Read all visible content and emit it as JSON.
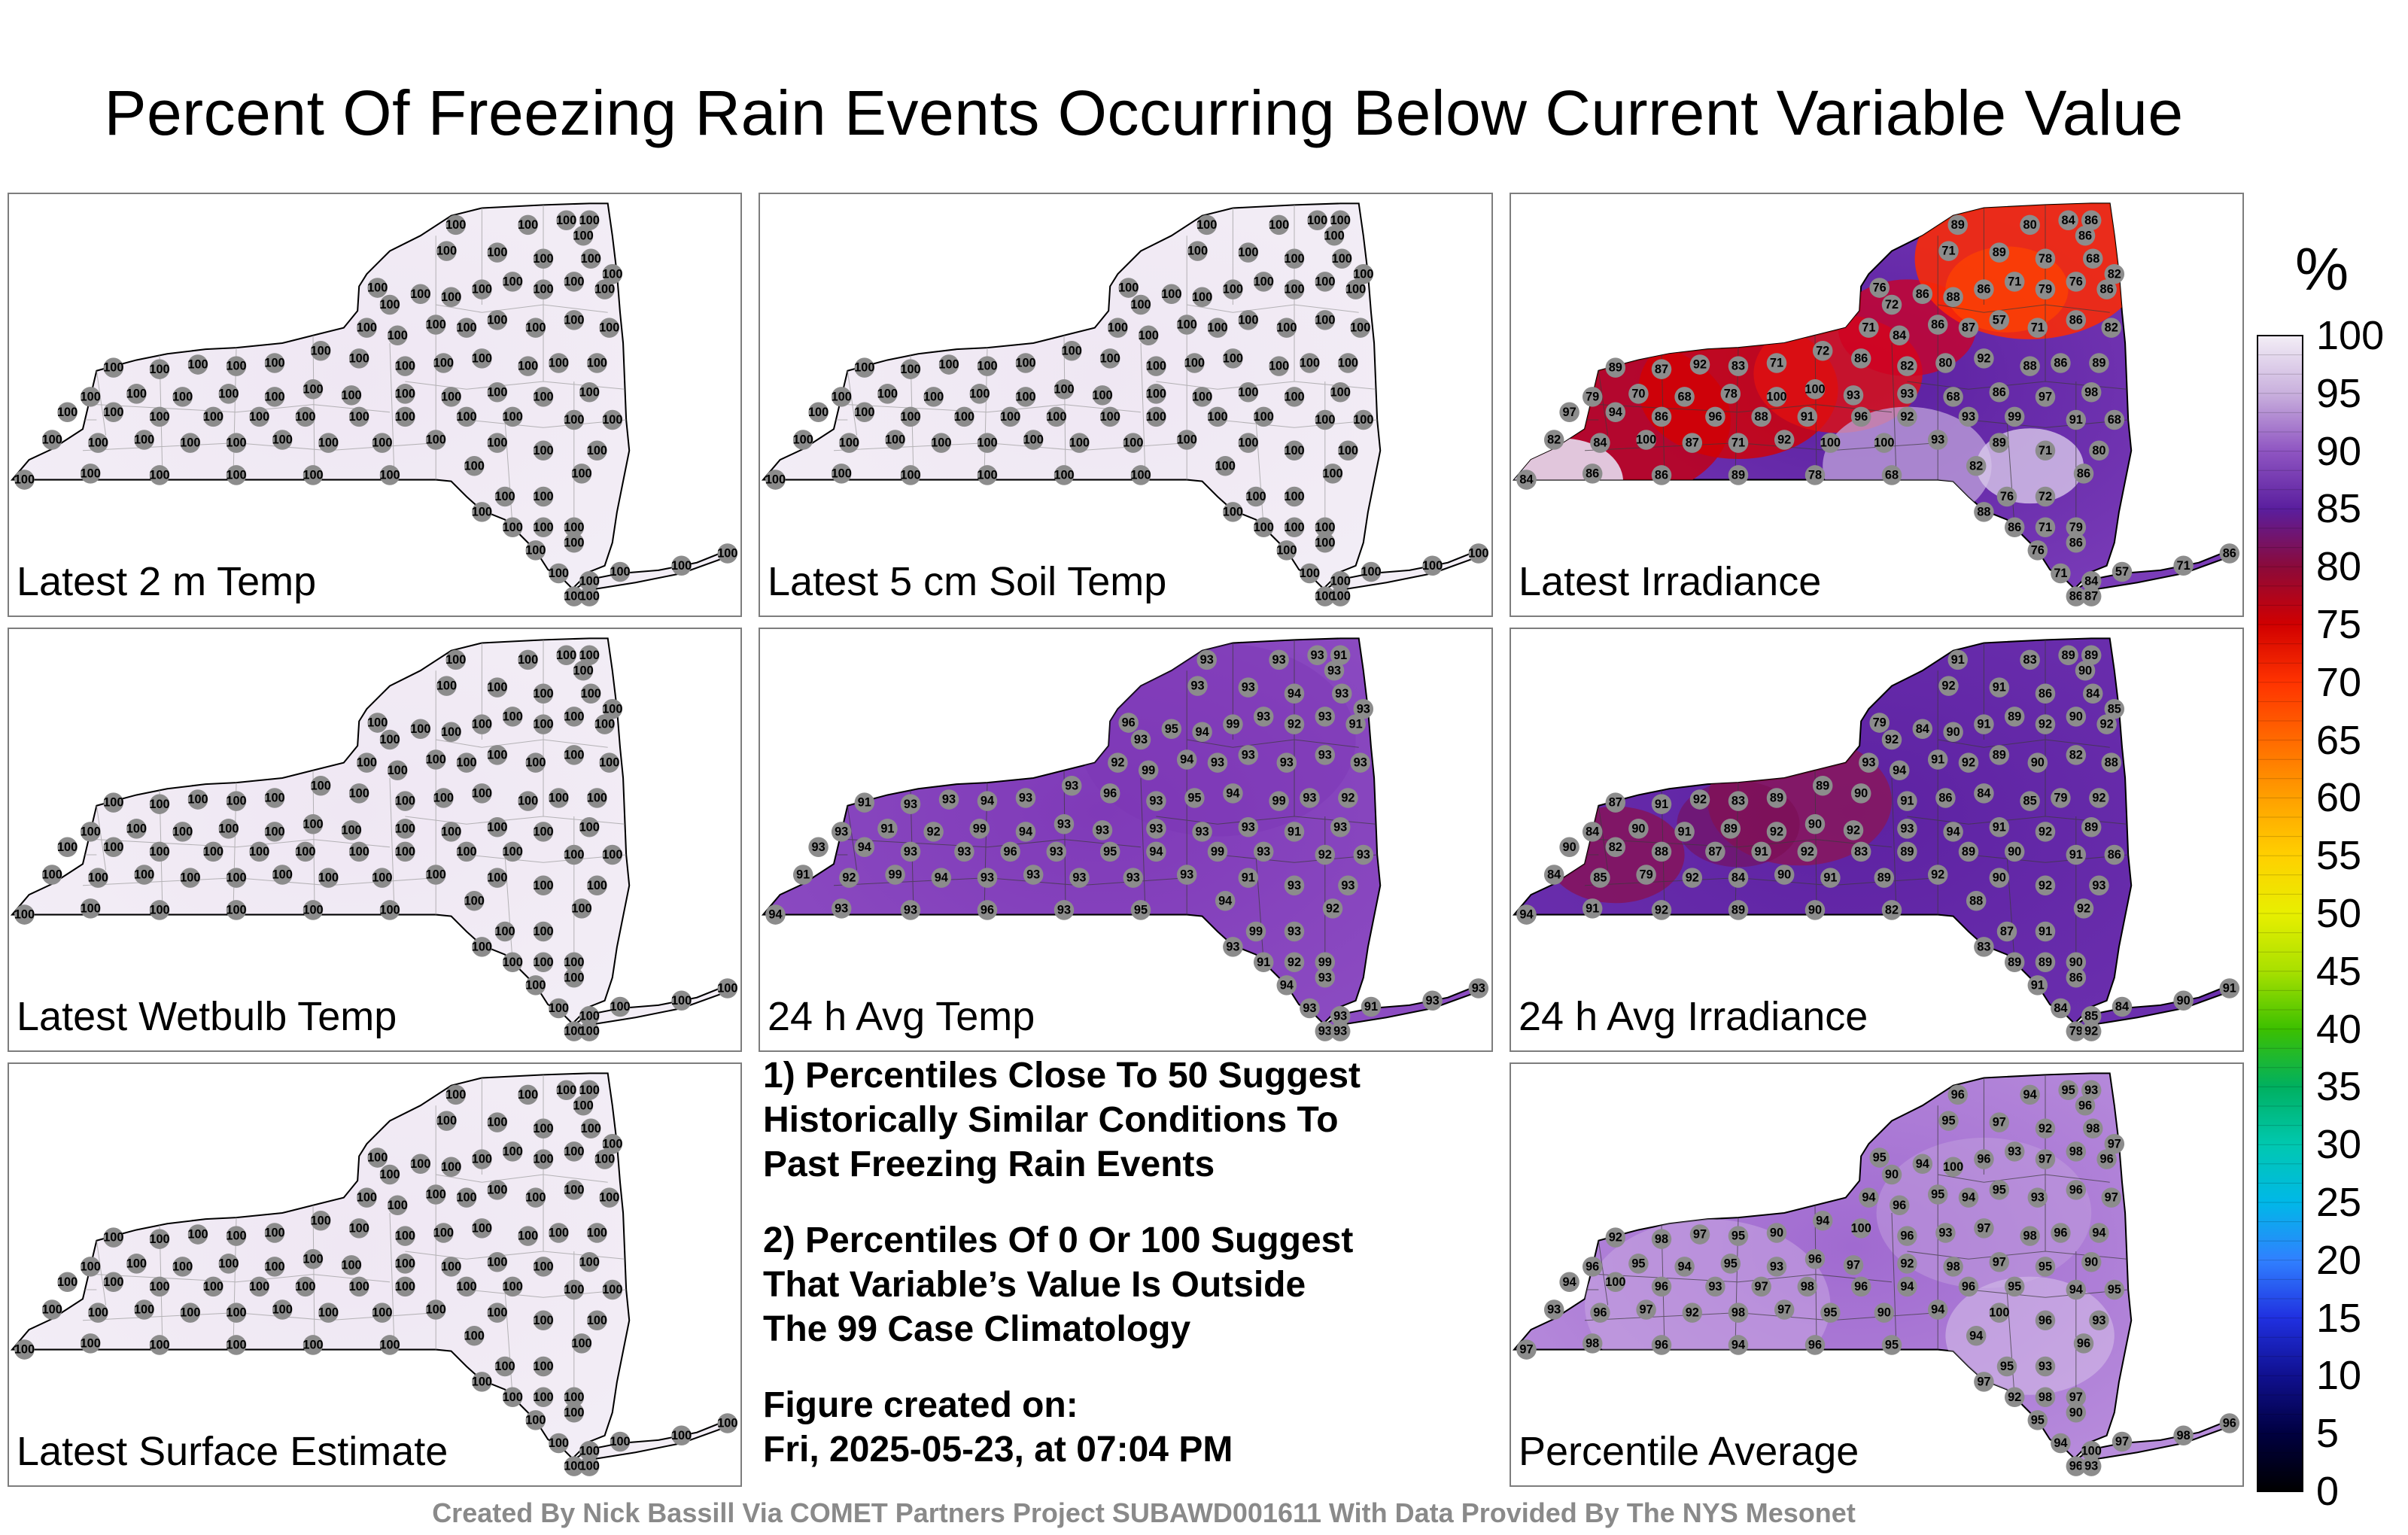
{
  "title": "Percent Of Freezing Rain Events Occurring Below Current Variable Value",
  "panels": [
    {
      "id": "p1",
      "label": "Latest 2 m Temp",
      "fill": "#efe7f3",
      "fill2": "#f3eef6",
      "mode": "uniform",
      "values": [
        100
      ]
    },
    {
      "id": "p2",
      "label": "Latest 5 cm Soil Temp",
      "fill": "#efe7f3",
      "fill2": "#f3eef6",
      "mode": "uniform",
      "values": [
        100
      ]
    },
    {
      "id": "p3",
      "label": "Latest Irradiance",
      "fill": "#5a1fa0",
      "fill2": "#7a3cb8",
      "mode": "irradiance",
      "values": [
        89,
        71,
        80,
        84,
        86,
        86,
        89,
        78,
        68,
        82,
        76,
        72,
        86,
        88,
        86,
        71,
        79,
        76,
        86,
        71,
        84,
        86,
        87,
        57,
        71,
        86,
        82,
        89,
        87,
        92,
        83,
        71,
        72,
        86,
        82,
        80,
        92,
        88,
        86,
        89,
        79,
        70,
        68,
        78,
        100,
        100,
        93,
        93,
        68,
        86,
        97,
        98,
        97,
        94,
        86,
        96,
        88,
        91,
        96,
        92,
        93,
        99,
        91,
        68,
        82,
        84,
        100,
        87,
        71,
        92,
        100,
        100,
        93
      ]
    },
    {
      "id": "p4",
      "label": "Latest Wetbulb Temp",
      "fill": "#efe7f3",
      "fill2": "#f3eef6",
      "mode": "uniform",
      "values": [
        100
      ]
    },
    {
      "id": "p5",
      "label": "24 h Avg Temp",
      "fill": "#7f3ab8",
      "fill2": "#8c4cc2",
      "mode": "temp",
      "values": [
        93,
        93,
        93,
        93,
        91,
        93,
        93,
        94,
        93,
        93,
        96,
        93,
        95,
        94,
        99,
        93,
        92,
        93,
        91,
        92,
        99,
        94,
        93
      ]
    },
    {
      "id": "p6",
      "label": "24 h Avg Irradiance",
      "fill": "#5d22a2",
      "fill2": "#6b2fae",
      "mode": "avgirr",
      "values": [
        91,
        92,
        83,
        89,
        89,
        90,
        91,
        86,
        84,
        85,
        79,
        92,
        84,
        90,
        91,
        89,
        92,
        90,
        92,
        93,
        94,
        91,
        92,
        89,
        90,
        82,
        88,
        87
      ]
    },
    {
      "id": "p7",
      "label": "Latest Surface Estimate",
      "fill": "#efe7f3",
      "fill2": "#f3eef6",
      "mode": "uniform",
      "values": [
        100
      ]
    },
    {
      "id": "p8",
      "label": "Percentile Average",
      "fill": "#a06ad0",
      "fill2": "#b88ddc",
      "mode": "avg",
      "values": [
        96,
        95,
        94,
        95,
        93,
        96,
        97,
        92,
        98,
        97,
        95,
        90,
        94,
        100,
        96,
        93,
        97,
        98,
        96,
        94
      ]
    }
  ],
  "notes": {
    "n1_line1": "1) Percentiles Close To 50 Suggest",
    "n1_line2": "Historically Similar Conditions To",
    "n1_line3": "Past Freezing Rain Events",
    "n2_line1": "2) Percentiles Of 0 Or 100 Suggest",
    "n2_line2": "That Variable’s Value Is Outside",
    "n2_line3": "The 99 Case Climatology",
    "created_label": "Figure created on:",
    "created_value": "Fri, 2025-05-23, at 07:04 PM"
  },
  "colorbar": {
    "unit": "%",
    "ticks": [
      "100",
      "95",
      "90",
      "85",
      "80",
      "75",
      "70",
      "65",
      "60",
      "55",
      "50",
      "45",
      "40",
      "35",
      "30",
      "25",
      "20",
      "15",
      "10",
      "5",
      "0"
    ],
    "stops": [
      "#f3eef6",
      "#c9b0dd",
      "#8f55c2",
      "#5a1e9e",
      "#8b0a3a",
      "#d10000",
      "#ff3300",
      "#ff6a00",
      "#ffa000",
      "#ffd000",
      "#e8ef00",
      "#a8e000",
      "#3cc000",
      "#00b060",
      "#00c8b0",
      "#00b8e8",
      "#3080ff",
      "#2030e0",
      "#10108f",
      "#000040",
      "#000000"
    ]
  },
  "footer": "Created By Nick Bassill Via COMET Partners Project SUBAWD001611 With Data Provided By The NYS Mesonet"
}
